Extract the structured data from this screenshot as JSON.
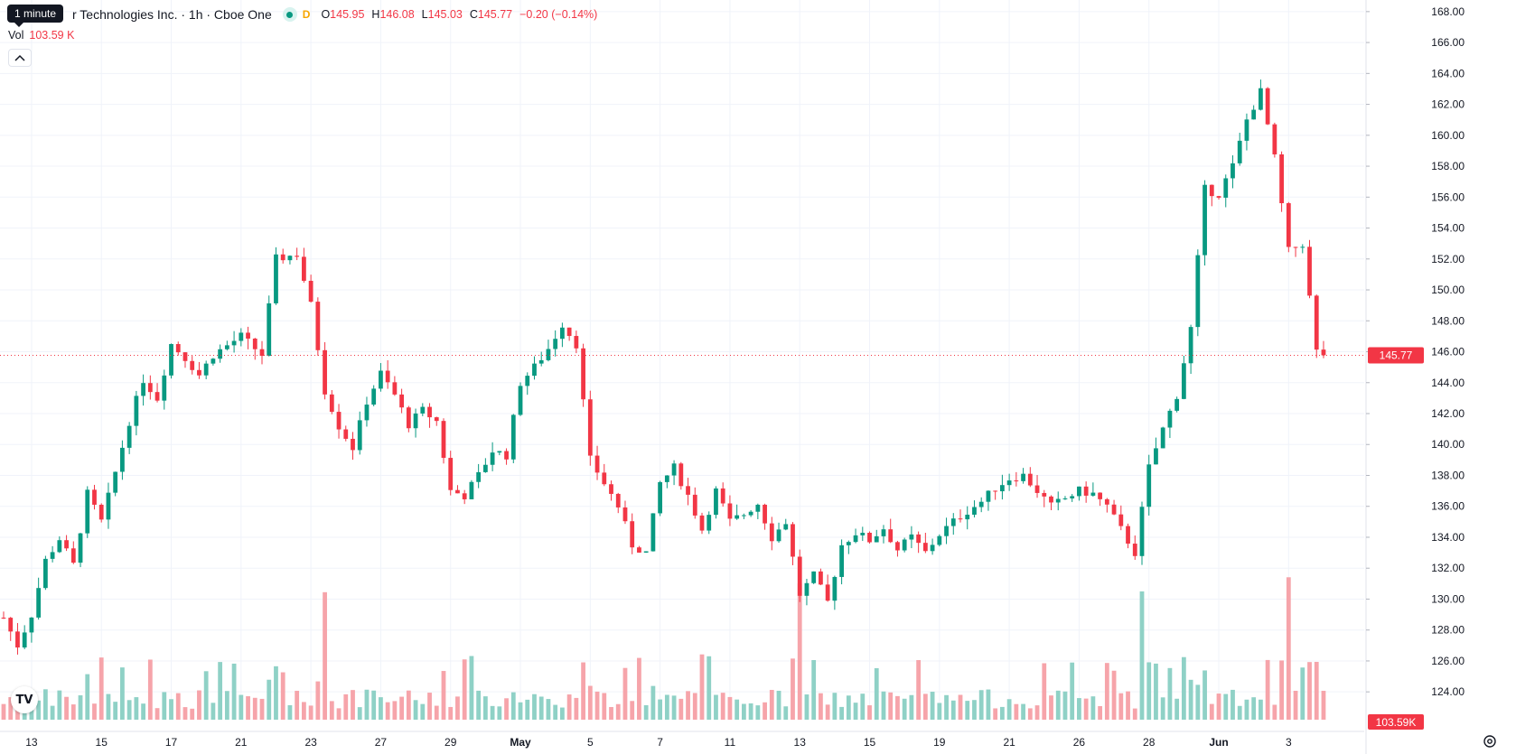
{
  "header": {
    "tooltip": "1 minute",
    "title": "r Technologies Inc. · 1h · Cboe One",
    "status_icon": "market-open-dot",
    "d_label": "D",
    "ohlc": [
      {
        "key": "O",
        "value": "145.95"
      },
      {
        "key": "H",
        "value": "146.08"
      },
      {
        "key": "L",
        "value": "145.03"
      },
      {
        "key": "C",
        "value": "145.77"
      },
      {
        "key": "",
        "value": "−0.20 (−0.14%)"
      }
    ],
    "volume_label": "Vol",
    "volume_value": "103.59 K"
  },
  "colors": {
    "up": "#089981",
    "down": "#f23645",
    "up_vol": "#8fd1c6",
    "down_vol": "#f6a4aa",
    "grid": "#f0f3fa",
    "axis_text": "#131722"
  },
  "chart_data": {
    "type": "candlestick",
    "y_ticks": [
      "124.00",
      "126.00",
      "128.00",
      "130.00",
      "132.00",
      "134.00",
      "136.00",
      "138.00",
      "140.00",
      "142.00",
      "144.00",
      "146.00",
      "148.00",
      "150.00",
      "152.00",
      "154.00",
      "156.00",
      "158.00",
      "160.00",
      "162.00",
      "164.00",
      "166.00",
      "168.00"
    ],
    "ylim": [
      122.2,
      168.4
    ],
    "x_ticks": [
      {
        "label": "13",
        "index": 4
      },
      {
        "label": "15",
        "index": 14
      },
      {
        "label": "17",
        "index": 24
      },
      {
        "label": "21",
        "index": 34
      },
      {
        "label": "23",
        "index": 44
      },
      {
        "label": "27",
        "index": 54
      },
      {
        "label": "29",
        "index": 64
      },
      {
        "label": "May",
        "index": 74
      },
      {
        "label": "5",
        "index": 84
      },
      {
        "label": "7",
        "index": 94
      },
      {
        "label": "11",
        "index": 104
      },
      {
        "label": "13",
        "index": 114
      },
      {
        "label": "15",
        "index": 124
      },
      {
        "label": "19",
        "index": 134
      },
      {
        "label": "21",
        "index": 144
      },
      {
        "label": "26",
        "index": 154
      },
      {
        "label": "28",
        "index": 164
      },
      {
        "label": "Jun",
        "index": 174
      },
      {
        "label": "3",
        "index": 184
      }
    ],
    "last_price": "145.77",
    "last_price_value": 145.77,
    "last_volume": "103.59K",
    "waypoints": [
      [
        0,
        128.8
      ],
      [
        2,
        127.0
      ],
      [
        4,
        129.0
      ],
      [
        6,
        132.5
      ],
      [
        8,
        133.9
      ],
      [
        10,
        132.2
      ],
      [
        12,
        136.8
      ],
      [
        14,
        135.0
      ],
      [
        16,
        138.2
      ],
      [
        18,
        141.5
      ],
      [
        20,
        144.2
      ],
      [
        22,
        143.0
      ],
      [
        24,
        146.5
      ],
      [
        26,
        145.6
      ],
      [
        28,
        144.5
      ],
      [
        30,
        145.8
      ],
      [
        34,
        147.0
      ],
      [
        37,
        145.8
      ],
      [
        39,
        152.0
      ],
      [
        42,
        152.3
      ],
      [
        44,
        149.0
      ],
      [
        46,
        143.5
      ],
      [
        48,
        141.2
      ],
      [
        50,
        139.8
      ],
      [
        52,
        142.8
      ],
      [
        54,
        144.6
      ],
      [
        56,
        143.2
      ],
      [
        58,
        141.3
      ],
      [
        60,
        142.2
      ],
      [
        62,
        141.5
      ],
      [
        64,
        137.0
      ],
      [
        66,
        136.7
      ],
      [
        68,
        138.0
      ],
      [
        70,
        139.6
      ],
      [
        72,
        139.3
      ],
      [
        74,
        144.0
      ],
      [
        76,
        145.0
      ],
      [
        78,
        146.2
      ],
      [
        80,
        147.8
      ],
      [
        82,
        146.5
      ],
      [
        84,
        139.0
      ],
      [
        86,
        137.5
      ],
      [
        88,
        136.0
      ],
      [
        90,
        133.5
      ],
      [
        92,
        133.0
      ],
      [
        94,
        137.5
      ],
      [
        96,
        138.5
      ],
      [
        98,
        136.7
      ],
      [
        100,
        134.5
      ],
      [
        102,
        137.0
      ],
      [
        104,
        135.0
      ],
      [
        106,
        135.5
      ],
      [
        108,
        136.2
      ],
      [
        110,
        134.0
      ],
      [
        112,
        135.0
      ],
      [
        114,
        130.3
      ],
      [
        116,
        131.5
      ],
      [
        118,
        129.8
      ],
      [
        120,
        133.5
      ],
      [
        122,
        134.3
      ],
      [
        124,
        133.8
      ],
      [
        126,
        134.6
      ],
      [
        128,
        133.2
      ],
      [
        130,
        134.0
      ],
      [
        132,
        133.0
      ],
      [
        134,
        134.2
      ],
      [
        136,
        135.0
      ],
      [
        138,
        135.7
      ],
      [
        140,
        136.3
      ],
      [
        142,
        137.2
      ],
      [
        144,
        137.8
      ],
      [
        146,
        138.0
      ],
      [
        148,
        137.0
      ],
      [
        150,
        136.0
      ],
      [
        152,
        136.5
      ],
      [
        154,
        137.0
      ],
      [
        156,
        136.8
      ],
      [
        158,
        136.0
      ],
      [
        160,
        134.5
      ],
      [
        162,
        133.0
      ],
      [
        164,
        138.5
      ],
      [
        166,
        141.0
      ],
      [
        168,
        143.2
      ],
      [
        170,
        147.5
      ],
      [
        172,
        156.5
      ],
      [
        174,
        156.2
      ],
      [
        176,
        158.0
      ],
      [
        178,
        161.0
      ],
      [
        180,
        162.8
      ],
      [
        182,
        158.5
      ],
      [
        184,
        152.5
      ],
      [
        186,
        153.0
      ],
      [
        188,
        146.0
      ],
      [
        189,
        145.77
      ]
    ]
  }
}
